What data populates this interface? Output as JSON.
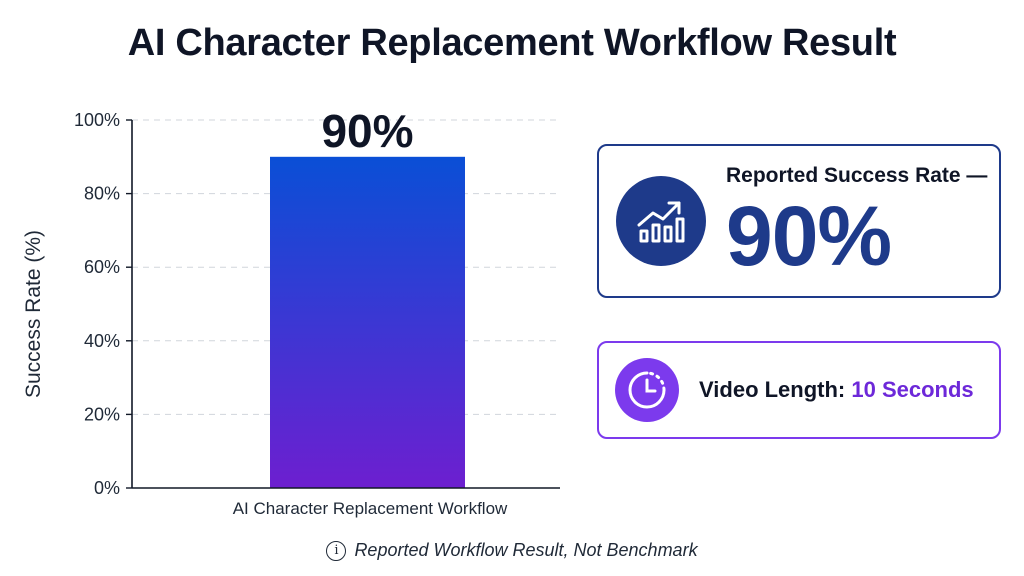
{
  "title": "AI Character Replacement Workflow Result",
  "chart_data": {
    "type": "bar",
    "categories": [
      "AI Character Replacement Workflow"
    ],
    "values": [
      90
    ],
    "value_labels": [
      "90%"
    ],
    "ylabel": "Success Rate (%)",
    "xlabel": "",
    "ylim": [
      0,
      100
    ],
    "yticks": [
      0,
      20,
      40,
      60,
      80,
      100
    ],
    "ytick_labels": [
      "0%",
      "20%",
      "40%",
      "60%",
      "80%",
      "100%"
    ],
    "grid": true,
    "colors": {
      "bar_top": "#0a4fd6",
      "bar_bottom": "#6d1fd0"
    }
  },
  "cards": {
    "rate": {
      "label": "Reported Success Rate —",
      "value": "90%",
      "icon": "growth-chart-icon"
    },
    "length": {
      "label": "Video Length:",
      "value": "10 Seconds",
      "icon": "clock-icon"
    }
  },
  "footnote": {
    "icon": "info-icon",
    "text": "Reported Workflow Result, Not Benchmark"
  },
  "colors": {
    "navy": "#1e3a8a",
    "purple": "#7c3aed",
    "text": "#0f1526"
  }
}
